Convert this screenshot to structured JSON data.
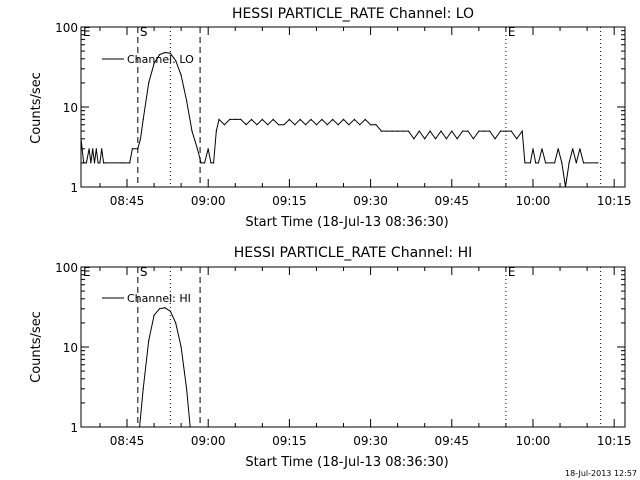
{
  "chart_data": [
    {
      "type": "line",
      "title": "HESSI PARTICLE_RATE Channel: LO",
      "xlabel": "Start Time (18-Jul-13 08:36:30)",
      "ylabel": "Counts/sec",
      "y_scale": "log",
      "ylim": [
        1,
        100
      ],
      "x_unit": "time of day",
      "xlim": [
        "08:36:30",
        "10:17:00"
      ],
      "xticks": [
        "08:45",
        "09:00",
        "09:15",
        "09:30",
        "09:45",
        "10:00",
        "10:15"
      ],
      "yticks": [
        "1",
        "10",
        "100"
      ],
      "legend": {
        "label": "Channel: LO",
        "position": "top-left"
      },
      "markers": [
        {
          "label": "E",
          "time": "08:36:30",
          "style": "none"
        },
        {
          "label": "S",
          "time": "08:47:00",
          "style": "dashed"
        },
        {
          "time": "08:53:00",
          "style": "dotted"
        },
        {
          "time": "08:58:30",
          "style": "dashed"
        },
        {
          "label": "E",
          "time": "09:55:00",
          "style": "dotted"
        },
        {
          "time": "10:12:30",
          "style": "dotted"
        }
      ],
      "series": [
        {
          "name": "Channel: LO",
          "points": [
            [
              "08:36:30",
              4
            ],
            [
              "08:37:00",
              2
            ],
            [
              "08:37:30",
              2
            ],
            [
              "08:38:00",
              3
            ],
            [
              "08:38:20",
              2
            ],
            [
              "08:38:40",
              3
            ],
            [
              "08:39:00",
              2
            ],
            [
              "08:39:20",
              3
            ],
            [
              "08:39:40",
              2
            ],
            [
              "08:40:00",
              2
            ],
            [
              "08:40:20",
              3
            ],
            [
              "08:40:40",
              2
            ],
            [
              "08:41:00",
              2
            ],
            [
              "08:44:00",
              2
            ],
            [
              "08:44:30",
              2
            ],
            [
              "08:45:30",
              2
            ],
            [
              "08:46:00",
              3
            ],
            [
              "08:47:00",
              3
            ],
            [
              "08:47:30",
              4
            ],
            [
              "08:48:00",
              7
            ],
            [
              "08:49:00",
              20
            ],
            [
              "08:50:00",
              35
            ],
            [
              "08:51:00",
              45
            ],
            [
              "08:52:00",
              48
            ],
            [
              "08:53:00",
              47
            ],
            [
              "08:54:00",
              38
            ],
            [
              "08:55:00",
              25
            ],
            [
              "08:56:00",
              12
            ],
            [
              "08:57:00",
              5
            ],
            [
              "08:58:00",
              3
            ],
            [
              "08:58:40",
              2
            ],
            [
              "08:59:20",
              2
            ],
            [
              "09:00:00",
              3
            ],
            [
              "09:00:30",
              2
            ],
            [
              "09:01:00",
              2
            ],
            [
              "09:01:30",
              5
            ],
            [
              "09:02:00",
              7
            ],
            [
              "09:03:00",
              6
            ],
            [
              "09:04:00",
              7
            ],
            [
              "09:05:00",
              7
            ],
            [
              "09:06:00",
              7
            ],
            [
              "09:07:00",
              6
            ],
            [
              "09:08:00",
              7
            ],
            [
              "09:09:00",
              6
            ],
            [
              "09:10:00",
              7
            ],
            [
              "09:11:00",
              6
            ],
            [
              "09:12:00",
              7
            ],
            [
              "09:13:00",
              6
            ],
            [
              "09:14:00",
              6
            ],
            [
              "09:15:00",
              7
            ],
            [
              "09:16:00",
              6
            ],
            [
              "09:17:00",
              7
            ],
            [
              "09:18:00",
              6
            ],
            [
              "09:19:00",
              7
            ],
            [
              "09:20:00",
              6
            ],
            [
              "09:21:00",
              7
            ],
            [
              "09:22:00",
              6
            ],
            [
              "09:23:00",
              7
            ],
            [
              "09:24:00",
              6
            ],
            [
              "09:25:00",
              7
            ],
            [
              "09:26:00",
              6
            ],
            [
              "09:27:00",
              7
            ],
            [
              "09:28:00",
              6
            ],
            [
              "09:29:00",
              7
            ],
            [
              "09:30:00",
              6
            ],
            [
              "09:31:00",
              6
            ],
            [
              "09:32:00",
              5
            ],
            [
              "09:33:00",
              5
            ],
            [
              "09:34:00",
              5
            ],
            [
              "09:35:00",
              5
            ],
            [
              "09:36:00",
              5
            ],
            [
              "09:37:00",
              5
            ],
            [
              "09:38:00",
              4
            ],
            [
              "09:39:00",
              5
            ],
            [
              "09:40:00",
              4
            ],
            [
              "09:41:00",
              5
            ],
            [
              "09:42:00",
              4
            ],
            [
              "09:43:00",
              5
            ],
            [
              "09:44:00",
              4
            ],
            [
              "09:45:00",
              5
            ],
            [
              "09:46:00",
              4
            ],
            [
              "09:47:00",
              5
            ],
            [
              "09:48:00",
              5
            ],
            [
              "09:49:00",
              4
            ],
            [
              "09:50:00",
              5
            ],
            [
              "09:51:00",
              5
            ],
            [
              "09:52:00",
              5
            ],
            [
              "09:53:00",
              4
            ],
            [
              "09:54:00",
              5
            ],
            [
              "09:55:00",
              5
            ],
            [
              "09:56:00",
              5
            ],
            [
              "09:57:00",
              4
            ],
            [
              "09:58:00",
              5
            ],
            [
              "09:58:30",
              2
            ],
            [
              "09:59:30",
              2
            ],
            [
              "10:00:00",
              3
            ],
            [
              "10:00:30",
              2
            ],
            [
              "10:01:00",
              2
            ],
            [
              "10:01:40",
              3
            ],
            [
              "10:02:20",
              2
            ],
            [
              "10:04:00",
              2
            ],
            [
              "10:04:40",
              3
            ],
            [
              "10:05:20",
              2
            ],
            [
              "10:06:00",
              1
            ],
            [
              "10:06:40",
              2
            ],
            [
              "10:07:20",
              3
            ],
            [
              "10:08:00",
              2
            ],
            [
              "10:08:40",
              3
            ],
            [
              "10:09:20",
              2
            ],
            [
              "10:12:00",
              2
            ]
          ]
        }
      ]
    },
    {
      "type": "line",
      "title": "HESSI PARTICLE_RATE Channel: HI",
      "xlabel": "Start Time (18-Jul-13 08:36:30)",
      "ylabel": "Counts/sec",
      "y_scale": "log",
      "ylim": [
        1,
        100
      ],
      "x_unit": "time of day",
      "xlim": [
        "08:36:30",
        "10:17:00"
      ],
      "xticks": [
        "08:45",
        "09:00",
        "09:15",
        "09:30",
        "09:45",
        "10:00",
        "10:15"
      ],
      "yticks": [
        "1",
        "10",
        "100"
      ],
      "legend": {
        "label": "Channel: HI",
        "position": "top-left"
      },
      "markers": [
        {
          "label": "E",
          "time": "08:36:30",
          "style": "none"
        },
        {
          "label": "S",
          "time": "08:47:00",
          "style": "dashed"
        },
        {
          "time": "08:53:00",
          "style": "dotted"
        },
        {
          "time": "08:58:30",
          "style": "dashed"
        },
        {
          "label": "E",
          "time": "09:55:00",
          "style": "dotted"
        },
        {
          "time": "10:12:30",
          "style": "dotted"
        }
      ],
      "series": [
        {
          "name": "Channel: HI",
          "points": [
            [
              "08:47:20",
              1
            ],
            [
              "08:48:00",
              3
            ],
            [
              "08:49:00",
              12
            ],
            [
              "08:50:00",
              25
            ],
            [
              "08:51:00",
              30
            ],
            [
              "08:52:00",
              31
            ],
            [
              "08:53:00",
              28
            ],
            [
              "08:54:00",
              20
            ],
            [
              "08:55:00",
              10
            ],
            [
              "08:56:00",
              3
            ],
            [
              "08:56:40",
              1
            ]
          ]
        }
      ]
    }
  ],
  "footer": {
    "timestamp": "18-Jul-2013 12:57"
  }
}
